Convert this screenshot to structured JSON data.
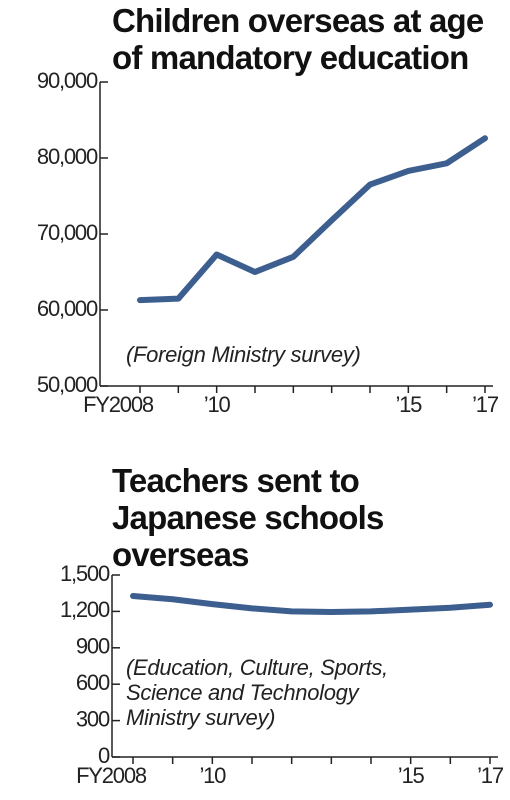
{
  "chart_data": [
    {
      "type": "line",
      "title": "Children overseas at age of mandatory education",
      "annotation": "(Foreign Ministry survey)",
      "categories": [
        "FY2008",
        null,
        "’10",
        null,
        null,
        null,
        null,
        "’15",
        null,
        "’17"
      ],
      "values": [
        61300,
        61500,
        67300,
        65000,
        67000,
        71800,
        76500,
        78300,
        79300,
        82600
      ],
      "color": "#3d5f8f",
      "ylim": [
        50000,
        90000
      ],
      "yticks": [
        {
          "value": 50000,
          "label": "50,000"
        },
        {
          "value": 60000,
          "label": "60,000"
        },
        {
          "value": 70000,
          "label": "70,000"
        },
        {
          "value": 80000,
          "label": "80,000"
        },
        {
          "value": 90000,
          "label": "90,000"
        }
      ]
    },
    {
      "type": "line",
      "title": "Teachers sent to Japanese schools overseas",
      "annotation": [
        "(Education, Culture, Sports,",
        "Science and Technology",
        "Ministry survey)"
      ],
      "categories": [
        "FY2008",
        null,
        "’10",
        null,
        null,
        null,
        null,
        "’15",
        null,
        "’17"
      ],
      "values": [
        1327,
        1300,
        1260,
        1225,
        1200,
        1195,
        1200,
        1215,
        1230,
        1255
      ],
      "color": "#3d5f8f",
      "ylim": [
        0,
        1500
      ],
      "yticks": [
        0,
        300,
        600,
        900,
        {
          "value": 1200,
          "label": "1,200"
        },
        {
          "value": 1500,
          "label": "1,500"
        }
      ]
    }
  ]
}
